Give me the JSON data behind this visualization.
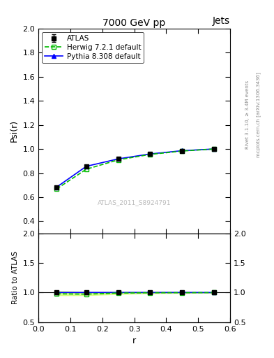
{
  "title": "7000 GeV pp",
  "title_right": "Jets",
  "ylabel_main": "Psi(r)",
  "ylabel_ratio": "Ratio to ATLAS",
  "xlabel": "r",
  "right_label_top": "Rivet 3.1.10, ≥ 3.4M events",
  "right_label_bottom": "mcplots.cern.ch [arXiv:1306.3436]",
  "watermark": "ATLAS_2011_S8924791",
  "xlim": [
    0,
    0.6
  ],
  "ylim_main": [
    0.3,
    2.0
  ],
  "ylim_ratio": [
    0.5,
    2.0
  ],
  "yticks_main": [
    0.4,
    0.6,
    0.8,
    1.0,
    1.2,
    1.4,
    1.6,
    1.8,
    2.0
  ],
  "yticks_ratio": [
    0.5,
    1.0,
    1.5,
    2.0
  ],
  "xticks": [
    0.0,
    0.1,
    0.2,
    0.3,
    0.4,
    0.5,
    0.6
  ],
  "atlas_x": [
    0.057,
    0.15,
    0.25,
    0.35,
    0.45,
    0.55
  ],
  "atlas_y": [
    0.682,
    0.855,
    0.917,
    0.958,
    0.985,
    1.0
  ],
  "atlas_color": "#000000",
  "atlas_marker": "s",
  "atlas_markersize": 5,
  "atlas_yerr": [
    0.012,
    0.01,
    0.008,
    0.007,
    0.006,
    0.005
  ],
  "herwig_x": [
    0.057,
    0.15,
    0.25,
    0.35,
    0.45,
    0.55
  ],
  "herwig_y": [
    0.668,
    0.832,
    0.91,
    0.955,
    0.983,
    1.0
  ],
  "herwig_color": "#00bb00",
  "herwig_linestyle": "--",
  "herwig_marker": "s",
  "herwig_markersize": 4,
  "pythia_x": [
    0.057,
    0.15,
    0.25,
    0.35,
    0.45,
    0.55
  ],
  "pythia_y": [
    0.683,
    0.856,
    0.918,
    0.959,
    0.986,
    1.0
  ],
  "pythia_color": "#0000ff",
  "pythia_linestyle": "-",
  "pythia_marker": "^",
  "pythia_markersize": 5,
  "herwig_ratio_y": [
    0.979,
    0.973,
    0.992,
    0.997,
    0.998,
    1.0
  ],
  "pythia_ratio_y": [
    1.001,
    1.001,
    1.001,
    1.001,
    1.001,
    1.0
  ],
  "herwig_band_y_upper": [
    1.025,
    1.01,
    1.007,
    1.004,
    1.003,
    1.002
  ],
  "herwig_band_y_lower": [
    0.955,
    0.955,
    0.975,
    0.988,
    0.993,
    0.997
  ],
  "legend_labels": [
    "ATLAS",
    "Herwig 7.2.1 default",
    "Pythia 8.308 default"
  ],
  "background_color": "#ffffff"
}
